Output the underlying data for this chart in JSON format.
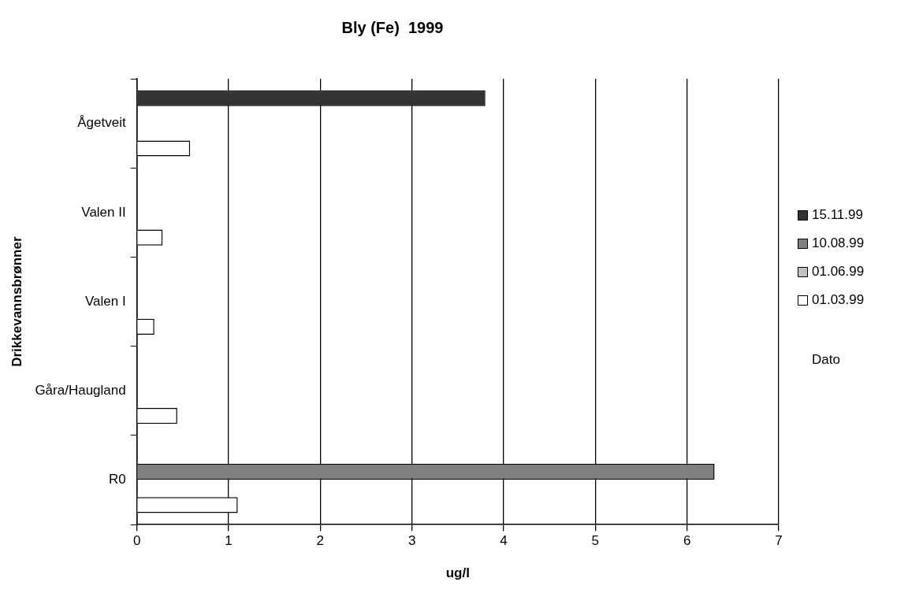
{
  "chart_data": {
    "type": "bar",
    "orientation": "horizontal",
    "title": "Bly (Fe)  1999",
    "xlabel": "ug/l",
    "ylabel": "Drikkevannsbrønner",
    "legend_title": "Dato",
    "categories": [
      "Ågetveit",
      "Valen II",
      "Valen I",
      "Gåra/Haugland",
      "R0"
    ],
    "series": [
      {
        "name": "15.11.99",
        "color": "#333333",
        "values": [
          3.8,
          null,
          null,
          null,
          null
        ]
      },
      {
        "name": "10.08.99",
        "color": "#808080",
        "values": [
          null,
          null,
          null,
          null,
          6.3
        ]
      },
      {
        "name": "01.06.99",
        "color": "#c0c0c0",
        "values": [
          null,
          null,
          null,
          null,
          null
        ]
      },
      {
        "name": "01.03.99",
        "color": "#ffffff",
        "values": [
          0.58,
          0.28,
          0.19,
          0.44,
          1.1
        ]
      }
    ],
    "xlim": [
      0,
      7
    ],
    "xticks": [
      0,
      1,
      2,
      3,
      4,
      5,
      6,
      7
    ],
    "grid": "x",
    "legend": "right"
  }
}
